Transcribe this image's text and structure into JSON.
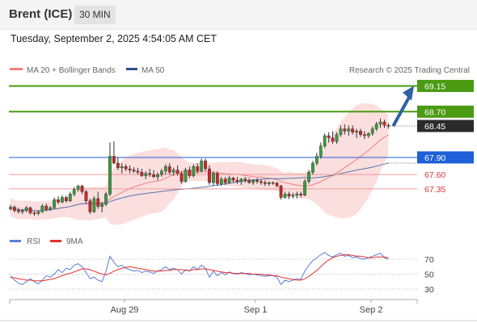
{
  "header": {
    "instrument": "Brent (ICE)",
    "timeframe": "30 MIN",
    "timestamp": "Tuesday, September 2, 2025 4:54:05 AM CET"
  },
  "legend": {
    "ma20_bb": "MA 20 + Bollinger Bands",
    "ma50": "MA 50",
    "credit": "Research © 2025 Trading Central",
    "rsi": "RSI",
    "ma9": "9MA"
  },
  "colors": {
    "green": "#4a9a12",
    "blue": "#1f5fd8",
    "red": "#d6363d",
    "dark": "#2b2b2b",
    "arrow": "#2c62a3",
    "candle_up": "#3d9a3d",
    "candle_down": "#c72727",
    "bollinger": "#fbdede",
    "ma20": "#f08080",
    "ma50": "#5a75b0",
    "rsi_line": "#5b7fd6",
    "rsi_ma": "#e03030"
  },
  "chart_data": [
    {
      "type": "candlestick",
      "title": "Brent (ICE) 30 MIN",
      "x_ticks": [
        "Aug 29",
        "Sep 1",
        "Sep 2"
      ],
      "ylim": [
        66.8,
        69.3
      ],
      "levels": [
        {
          "value": 69.15,
          "label": "69.15",
          "style": "green-tag"
        },
        {
          "value": 68.7,
          "label": "68.70",
          "style": "green-tag"
        },
        {
          "value": 68.45,
          "label": "68.45",
          "style": "last-price"
        },
        {
          "value": 67.9,
          "label": "67.90",
          "style": "blue-tag"
        },
        {
          "value": 67.6,
          "label": "67.60",
          "style": "red-text"
        },
        {
          "value": 67.35,
          "label": "67.35",
          "style": "red-text"
        }
      ],
      "ohlc": [
        [
          67.0,
          67.07,
          66.97,
          67.03
        ],
        [
          67.03,
          67.06,
          66.94,
          66.97
        ],
        [
          66.97,
          67.02,
          66.92,
          66.95
        ],
        [
          66.95,
          67.0,
          66.91,
          66.97
        ],
        [
          66.97,
          67.05,
          66.94,
          67.02
        ],
        [
          67.02,
          67.04,
          66.9,
          66.93
        ],
        [
          66.93,
          66.96,
          66.88,
          66.92
        ],
        [
          66.92,
          66.97,
          66.89,
          66.95
        ],
        [
          66.95,
          67.08,
          66.93,
          67.05
        ],
        [
          67.05,
          67.09,
          66.96,
          66.99
        ],
        [
          66.99,
          67.05,
          66.97,
          67.02
        ],
        [
          67.02,
          67.2,
          67.0,
          67.16
        ],
        [
          67.16,
          67.22,
          67.08,
          67.12
        ],
        [
          67.12,
          67.24,
          67.1,
          67.2
        ],
        [
          67.2,
          67.23,
          67.11,
          67.14
        ],
        [
          67.14,
          67.3,
          67.12,
          67.26
        ],
        [
          67.26,
          67.38,
          67.22,
          67.34
        ],
        [
          67.34,
          67.42,
          67.3,
          67.4
        ],
        [
          67.4,
          67.42,
          67.26,
          67.3
        ],
        [
          67.3,
          67.33,
          67.1,
          67.14
        ],
        [
          67.14,
          67.18,
          66.91,
          66.95
        ],
        [
          66.95,
          67.22,
          66.93,
          67.18
        ],
        [
          67.18,
          67.3,
          67.0,
          67.04
        ],
        [
          67.04,
          67.12,
          66.94,
          67.08
        ],
        [
          67.08,
          67.3,
          67.05,
          67.26
        ],
        [
          67.26,
          68.16,
          67.22,
          67.92
        ],
        [
          67.92,
          68.18,
          67.78,
          67.8
        ],
        [
          67.8,
          67.9,
          67.68,
          67.72
        ],
        [
          67.72,
          67.8,
          67.62,
          67.74
        ],
        [
          67.74,
          67.78,
          67.66,
          67.7
        ],
        [
          67.7,
          67.76,
          67.62,
          67.68
        ],
        [
          67.68,
          67.73,
          67.63,
          67.66
        ],
        [
          67.66,
          67.72,
          67.6,
          67.64
        ],
        [
          67.64,
          67.7,
          67.56,
          67.58
        ],
        [
          67.58,
          67.66,
          67.52,
          67.62
        ],
        [
          67.62,
          67.7,
          67.56,
          67.6
        ],
        [
          67.6,
          67.68,
          67.54,
          67.56
        ],
        [
          67.56,
          67.64,
          67.5,
          67.6
        ],
        [
          67.6,
          67.7,
          67.56,
          67.66
        ],
        [
          67.66,
          67.78,
          67.6,
          67.74
        ],
        [
          67.74,
          67.8,
          67.6,
          67.64
        ],
        [
          67.64,
          67.72,
          67.58,
          67.68
        ],
        [
          67.68,
          67.76,
          67.58,
          67.62
        ],
        [
          67.62,
          67.66,
          67.44,
          67.48
        ],
        [
          67.48,
          67.72,
          67.46,
          67.68
        ],
        [
          67.68,
          67.74,
          67.54,
          67.58
        ],
        [
          67.58,
          67.78,
          67.55,
          67.74
        ],
        [
          67.74,
          67.8,
          67.62,
          67.66
        ],
        [
          67.66,
          67.88,
          67.64,
          67.84
        ],
        [
          67.84,
          67.88,
          67.66,
          67.7
        ],
        [
          67.7,
          67.76,
          67.42,
          67.46
        ],
        [
          67.46,
          67.66,
          67.4,
          67.62
        ],
        [
          67.62,
          67.66,
          67.4,
          67.44
        ],
        [
          67.44,
          67.56,
          67.4,
          67.52
        ],
        [
          67.52,
          67.56,
          67.42,
          67.46
        ],
        [
          67.46,
          67.58,
          67.44,
          67.54
        ],
        [
          67.54,
          67.56,
          67.46,
          67.5
        ],
        [
          67.5,
          67.56,
          67.44,
          67.48
        ],
        [
          67.48,
          67.54,
          67.42,
          67.52
        ],
        [
          67.52,
          67.56,
          67.46,
          67.5
        ],
        [
          67.5,
          67.54,
          67.44,
          67.46
        ],
        [
          67.46,
          67.52,
          67.42,
          67.5
        ],
        [
          67.5,
          67.54,
          67.44,
          67.48
        ],
        [
          67.48,
          67.52,
          67.42,
          67.46
        ],
        [
          67.46,
          67.5,
          67.4,
          67.44
        ],
        [
          67.44,
          67.48,
          67.4,
          67.46
        ],
        [
          67.46,
          67.48,
          67.42,
          67.45
        ],
        [
          67.45,
          67.47,
          67.38,
          67.4
        ],
        [
          67.4,
          67.42,
          67.16,
          67.2
        ],
        [
          67.2,
          67.3,
          67.18,
          67.26
        ],
        [
          67.26,
          67.3,
          67.17,
          67.22
        ],
        [
          67.22,
          67.28,
          67.18,
          67.24
        ],
        [
          67.24,
          67.3,
          67.18,
          67.26
        ],
        [
          67.26,
          67.3,
          67.2,
          67.24
        ],
        [
          67.24,
          67.52,
          67.22,
          67.48
        ],
        [
          67.48,
          67.68,
          67.44,
          67.64
        ],
        [
          67.64,
          67.84,
          67.6,
          67.8
        ],
        [
          67.8,
          67.98,
          67.76,
          67.92
        ],
        [
          67.92,
          68.16,
          67.88,
          68.1
        ],
        [
          68.1,
          68.32,
          68.06,
          68.28
        ],
        [
          68.28,
          68.34,
          68.16,
          68.24
        ],
        [
          68.24,
          68.36,
          68.14,
          68.18
        ],
        [
          68.18,
          68.34,
          68.14,
          68.3
        ],
        [
          68.3,
          68.46,
          68.26,
          68.4
        ],
        [
          68.4,
          68.48,
          68.3,
          68.36
        ],
        [
          68.36,
          68.46,
          68.28,
          68.4
        ],
        [
          68.4,
          68.46,
          68.3,
          68.34
        ],
        [
          68.34,
          68.4,
          68.24,
          68.36
        ],
        [
          68.36,
          68.4,
          68.26,
          68.3
        ],
        [
          68.3,
          68.36,
          68.22,
          68.28
        ],
        [
          68.28,
          68.34,
          68.24,
          68.32
        ],
        [
          68.32,
          68.44,
          68.28,
          68.4
        ],
        [
          68.4,
          68.52,
          68.36,
          68.48
        ],
        [
          68.48,
          68.58,
          68.42,
          68.52
        ],
        [
          68.52,
          68.56,
          68.42,
          68.46
        ],
        [
          68.46,
          68.5,
          68.4,
          68.45
        ]
      ],
      "projection": {
        "from": 68.45,
        "to": 69.15
      }
    },
    {
      "type": "line",
      "title": "RSI",
      "y_ticks": [
        70,
        50,
        30
      ],
      "ylim": [
        20,
        85
      ],
      "series": [
        {
          "name": "RSI",
          "values": [
            48,
            42,
            38,
            36,
            40,
            44,
            40,
            37,
            42,
            48,
            46,
            50,
            56,
            52,
            58,
            56,
            62,
            64,
            60,
            52,
            44,
            46,
            42,
            40,
            54,
            74,
            66,
            60,
            62,
            58,
            56,
            54,
            55,
            52,
            54,
            53,
            51,
            54,
            56,
            60,
            56,
            58,
            56,
            50,
            56,
            54,
            60,
            56,
            62,
            58,
            46,
            54,
            48,
            52,
            49,
            53,
            51,
            50,
            52,
            51,
            49,
            50,
            49,
            48,
            47,
            48,
            48,
            46,
            36,
            42,
            40,
            42,
            44,
            43,
            54,
            62,
            68,
            72,
            76,
            79,
            75,
            73,
            76,
            78,
            74,
            75,
            72,
            73,
            71,
            70,
            72,
            74,
            76,
            78,
            72,
            70
          ]
        },
        {
          "name": "9MA",
          "values": [
            46,
            45,
            44,
            43,
            42,
            42,
            41,
            41,
            41,
            42,
            43,
            44,
            46,
            48,
            50,
            51,
            53,
            55,
            57,
            57,
            56,
            54,
            52,
            50,
            49,
            51,
            54,
            56,
            58,
            59,
            60,
            59,
            58,
            57,
            56,
            55,
            54,
            54,
            54,
            55,
            55,
            56,
            56,
            56,
            55,
            55,
            56,
            56,
            57,
            57,
            56,
            55,
            54,
            53,
            52,
            52,
            51,
            51,
            51,
            51,
            51,
            50,
            50,
            50,
            49,
            49,
            48,
            48,
            46,
            45,
            44,
            43,
            42,
            42,
            44,
            47,
            51,
            55,
            60,
            65,
            69,
            72,
            74,
            75,
            76,
            76,
            75,
            74,
            74,
            73,
            72,
            72,
            73,
            73,
            73,
            72
          ]
        }
      ]
    }
  ]
}
